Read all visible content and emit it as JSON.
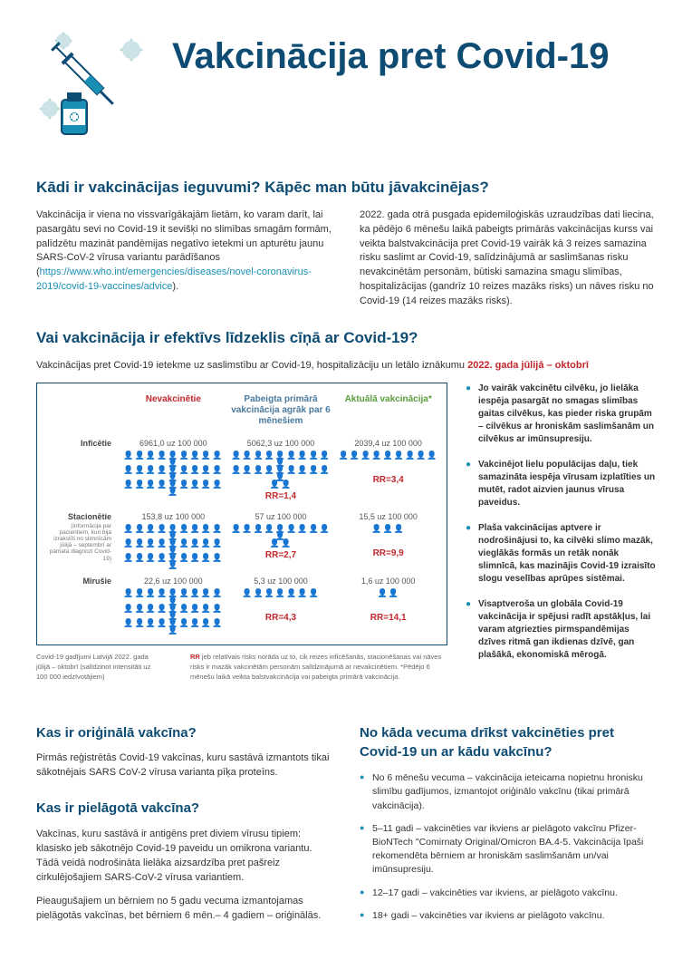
{
  "title": "Vakcinācija pret Covid-19",
  "section_benefits": {
    "heading": "Kādi ir vakcinācijas ieguvumi? Kāpēc man būtu jāvakcinējas?",
    "col1_pre": "Vakcinācija ir viena no vissvarīgākajām lietām, ko varam darīt, lai pasargātu sevi no Covid-19 it sevišķi no slimības smagām formām, palīdzētu mazināt pandēmijas negatīvo ietekmi un apturētu jaunu SARS-CoV-2 vīrusa variantu parādīšanos (",
    "col1_link": "https://www.who.int/emergencies/diseases/novel-coronavirus-2019/covid-19-vaccines/advice",
    "col1_post": ").",
    "col2": "2022. gada otrā pusgada epidemiloģiskās uzraudzības dati liecina, ka pēdējo 6 mēnešu laikā pabeigts primārās vakcinācijas kurss vai veikta balstvakcinācija pret Covid-19 vairāk kā 3 reizes samazina risku saslimt ar Covid-19,  salīdzinājumā ar saslimšanas risku nevakcinētām personām, būtiski samazina smagu slimības, hospitalizācijas (gandrīz 10 reizes mazāks risks) un nāves risku no Covid-19 (14 reizes mazāks risks)."
  },
  "section_effective": {
    "heading": "Vai vakcinācija ir efektīvs līdzeklis cīņā ar Covid-19?",
    "subtext_pre": "Vakcinācijas pret Covid-19 ietekme uz saslimstību ar Covid-19, hospitalizāciju un letālo iznākumu ",
    "subtext_date": "2022. gada jūlijā – oktobrī",
    "bullets": [
      "Jo vairāk vakcinētu cilvēku, jo lielāka iespēja pasargāt no smagas slimības gaitas cilvēkus, kas pieder riska grupām – cilvēkus ar hroniskām saslimšanām un cilvēkus ar imūnsupresiju.",
      "Vakcinējot lielu populācijas daļu, tiek samazināta iespēja vīrusam izplatīties un mutēt, radot aizvien jaunus vīrusa paveidus.",
      "Plaša vakcinācijas aptvere ir nodrošinājusi to, ka cilvēki slimo mazāk, vieglākās formās un retāk nonāk slimnīcā, kas mazinājis Covid-19 izraisīto slogu veselības aprūpes sistēmai.",
      "Visaptveroša un globāla Covid-19 vakcinācija ir spējusi radīt apstākļus, lai varam atgriezties pirmspandēmijas dzīves ritmā gan ikdienas dzīvē, gan plašākā, ekonomiskā mērogā."
    ]
  },
  "chart": {
    "cols": [
      {
        "label": "Nevakcinētie",
        "color": "red"
      },
      {
        "label": "Pabeigta primārā vakcinācija agrāk par 6 mēnešiem",
        "color": "blue"
      },
      {
        "label": "Aktuālā vakcinācija*",
        "color": "green"
      }
    ],
    "rows": [
      {
        "label": "Inficētie",
        "sub": "",
        "cells": [
          {
            "num": "6961,0 uz 100 000",
            "icons": 30,
            "color": "blue",
            "rr": ""
          },
          {
            "num": "5062,3 uz 100 000",
            "icons": 22,
            "color": "blue",
            "rr": "RR=1,4"
          },
          {
            "num": "2039,4 uz 100 000",
            "icons": 9,
            "color": "blue",
            "rr": "RR=3,4"
          }
        ]
      },
      {
        "label": "Stacionētie",
        "sub": "(informācija par pacientiem, kuri bija izrakstīti no slimnīcām jūlijā – septembrī ar pamata diagnozi Covid-19)",
        "cells": [
          {
            "num": "153,8 uz 100 000",
            "icons": 30,
            "color": "yellow",
            "rr": ""
          },
          {
            "num": "57 uz 100 000",
            "icons": 12,
            "color": "yellow",
            "rr": "RR=2,7"
          },
          {
            "num": "15,5 uz 100 000",
            "icons": 3,
            "color": "yellow",
            "rr": "RR=9,9"
          }
        ]
      },
      {
        "label": "Mirušie",
        "sub": "",
        "cells": [
          {
            "num": "22,6 uz 100 000",
            "icons": 30,
            "color": "red",
            "rr": ""
          },
          {
            "num": "5,3 uz 100 000",
            "icons": 7,
            "color": "red",
            "rr": "RR=4,3"
          },
          {
            "num": "1,6 uz 100 000",
            "icons": 2,
            "color": "red",
            "rr": "RR=14,1"
          }
        ]
      }
    ],
    "foot_left": "Covid-19 gadījumi Latvijā 2022. gada jūlijā – oktobrī (salīdzinot intensitāti uz 100 000 iedzīvotājiem)",
    "foot_right_label": "RR",
    "foot_right": " jeb relatīvais risks norāda uz to, cik reizes inficēšanās, stacionēšanas vai nāves risks ir mazāk vakcinētām personām salīdzinājumā ar nevakcinētiem. *Pēdējo 6 mēnešu laikā veikta balstvakcinācija vai pabeigta primārā vakcinācija."
  },
  "section_original": {
    "heading": "Kas ir oriģinālā vakcīna?",
    "text": "Pirmās reģistrētās Covid-19 vakcīnas, kuru sastāvā izmantots tikai sākotnējais SARS CoV-2 vīrusa varianta pīķa proteīns."
  },
  "section_adapted": {
    "heading": "Kas ir pielāgotā vakcīna?",
    "text1": "Vakcīnas, kuru sastāvā ir antigēns pret diviem vīrusu tipiem: klasisko jeb sākotnējo Covid-19 paveidu un omikrona variantu. Tādā veidā nodrošināta lielāka aizsardzība pret pašreiz cirkulējošajiem SARS-CoV-2 vīrusa variantiem.",
    "text2": "Pieaugušajiem un bērniem no 5 gadu vecuma izmantojamas pielāgotās vakcīnas, bet bērniem 6 mēn.– 4 gadiem – oriģinālās."
  },
  "section_age": {
    "heading": "No kāda vecuma drīkst vakcinēties pret Covid-19 un ar kādu vakcīnu?",
    "items": [
      "No 6 mēnešu vecuma  – vakcinācija ieteicama nopietnu hronisku slimību gadījumos, izmantojot oriģinālo vakcīnu (tikai primārā vakcinācija).",
      "5–11 gadi – vakcinēties var ikviens ar pielāgoto vakcīnu Pfizer-BioNTech \"Comirnaty Original/Omicron BA.4-5. Vakcinācija īpaši rekomendēta bērniem ar hroniskām saslimšanām un/vai imūnsupresiju.",
      "12–17 gadi – vakcinēties var ikviens, ar pielāgoto vakcīnu.",
      "18+ gadi – vakcinēties var  ikviens ar pielāgoto vakcīnu."
    ]
  }
}
